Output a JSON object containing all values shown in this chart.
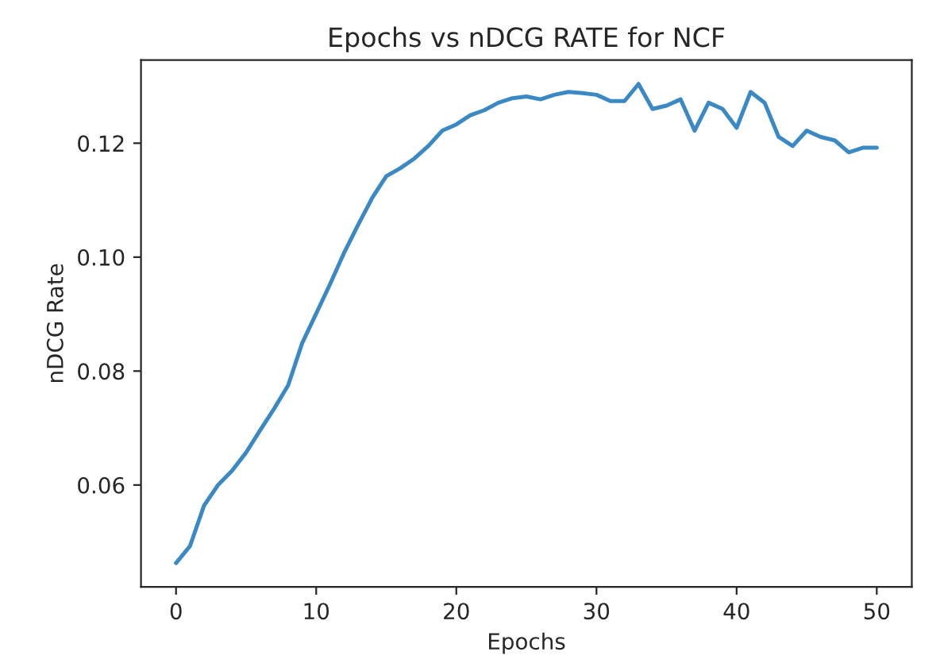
{
  "chart_data": {
    "type": "line",
    "title": "Epochs vs nDCG RATE for NCF",
    "xlabel": "Epochs",
    "ylabel": "nDCG Rate",
    "x": [
      0,
      1,
      2,
      3,
      4,
      5,
      6,
      7,
      8,
      9,
      10,
      11,
      12,
      13,
      14,
      15,
      16,
      17,
      18,
      19,
      20,
      21,
      22,
      23,
      24,
      25,
      26,
      27,
      28,
      29,
      30,
      31,
      32,
      33,
      34,
      35,
      36,
      37,
      38,
      39,
      40,
      41,
      42,
      43,
      44,
      45,
      46,
      47,
      48,
      49,
      50
    ],
    "series": [
      {
        "color": "#3a88c4",
        "values": [
          0.0463,
          0.0493,
          0.0564,
          0.06,
          0.0625,
          0.0657,
          0.0696,
          0.0734,
          0.0775,
          0.0849,
          0.0901,
          0.0953,
          0.1008,
          0.1057,
          0.1104,
          0.1142,
          0.1156,
          0.1173,
          0.1195,
          0.1222,
          0.1233,
          0.1249,
          0.1258,
          0.1271,
          0.1279,
          0.1282,
          0.1277,
          0.1285,
          0.129,
          0.1288,
          0.1285,
          0.1274,
          0.1274,
          0.1304,
          0.126,
          0.1266,
          0.1277,
          0.1222,
          0.1271,
          0.126,
          0.1227,
          0.129,
          0.1271,
          0.1211,
          0.1195,
          0.1222,
          0.1211,
          0.1205,
          0.1184,
          0.1192,
          0.1192
        ]
      }
    ],
    "xlim": [
      -2.5,
      52.5
    ],
    "ylim": [
      0.0421,
      0.1346
    ],
    "xticks": [
      0,
      10,
      20,
      30,
      40,
      50
    ],
    "yticks": [
      {
        "value": 0.06,
        "label": "0.06"
      },
      {
        "value": 0.08,
        "label": "0.08"
      },
      {
        "value": 0.1,
        "label": "0.10"
      },
      {
        "value": 0.12,
        "label": "0.12"
      }
    ],
    "grid": false,
    "legend": false,
    "line_style": "solid",
    "marker": "none"
  }
}
